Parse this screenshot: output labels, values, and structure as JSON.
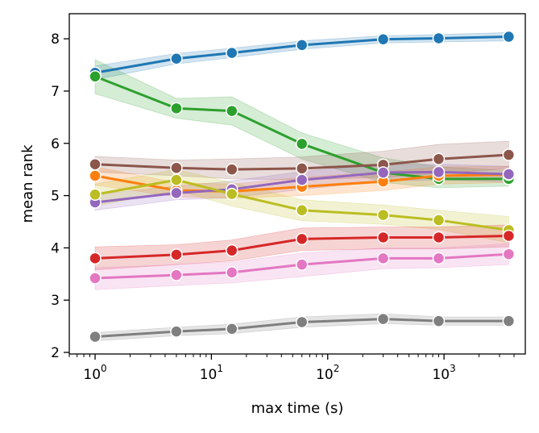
{
  "chart_data": {
    "type": "line",
    "title": "",
    "xlabel": "max time (s)",
    "ylabel": "mean rank",
    "xscale": "log",
    "xlim": [
      0.6,
      5000
    ],
    "ylim": [
      1.97,
      8.48
    ],
    "x": [
      1,
      5,
      15,
      60,
      300,
      900,
      3600
    ],
    "xticks": [
      {
        "value": 1,
        "base": "10",
        "exp": "0"
      },
      {
        "value": 10,
        "base": "10",
        "exp": "1"
      },
      {
        "value": 100,
        "base": "10",
        "exp": "2"
      },
      {
        "value": 1000,
        "base": "10",
        "exp": "3"
      }
    ],
    "yticks": [
      2,
      3,
      4,
      5,
      6,
      7,
      8
    ],
    "legend": "none",
    "series": [
      {
        "name": "blue",
        "color": "#1f77b4",
        "values": [
          7.35,
          7.62,
          7.73,
          7.88,
          7.99,
          8.01,
          8.04
        ],
        "lower": [
          7.22,
          7.52,
          7.64,
          7.8,
          7.92,
          7.94,
          7.96
        ],
        "upper": [
          7.48,
          7.72,
          7.82,
          7.96,
          8.06,
          8.08,
          8.12
        ]
      },
      {
        "name": "green",
        "color": "#2ca02c",
        "values": [
          7.28,
          6.67,
          6.62,
          5.99,
          5.44,
          5.32,
          5.32
        ],
        "lower": [
          6.95,
          6.48,
          6.35,
          5.7,
          5.25,
          5.15,
          5.18
        ],
        "upper": [
          7.6,
          6.86,
          6.89,
          6.2,
          5.72,
          5.55,
          5.48
        ]
      },
      {
        "name": "brown",
        "color": "#8c564b",
        "values": [
          5.6,
          5.53,
          5.5,
          5.52,
          5.59,
          5.7,
          5.78
        ],
        "lower": [
          5.45,
          5.38,
          5.32,
          5.3,
          5.35,
          5.42,
          5.52
        ],
        "upper": [
          5.75,
          5.68,
          5.7,
          5.74,
          5.85,
          5.98,
          6.04
        ]
      },
      {
        "name": "orange",
        "color": "#ff7f0e",
        "values": [
          5.38,
          5.1,
          5.08,
          5.17,
          5.27,
          5.38,
          5.4
        ],
        "lower": [
          5.2,
          4.98,
          4.95,
          5.0,
          5.1,
          5.22,
          5.25
        ],
        "upper": [
          5.55,
          5.25,
          5.22,
          5.35,
          5.45,
          5.55,
          5.56
        ]
      },
      {
        "name": "purple",
        "color": "#9467bd",
        "values": [
          4.87,
          5.05,
          5.12,
          5.3,
          5.44,
          5.45,
          5.41
        ],
        "lower": [
          4.72,
          4.92,
          4.96,
          5.12,
          5.28,
          5.3,
          5.26
        ],
        "upper": [
          5.02,
          5.18,
          5.28,
          5.46,
          5.6,
          5.6,
          5.56
        ]
      },
      {
        "name": "olive",
        "color": "#bcbd22",
        "values": [
          5.02,
          5.3,
          5.03,
          4.72,
          4.63,
          4.53,
          4.34
        ],
        "lower": [
          4.8,
          5.1,
          4.8,
          4.52,
          4.45,
          4.35,
          4.1
        ],
        "upper": [
          5.22,
          5.5,
          5.25,
          4.92,
          4.82,
          4.72,
          4.6
        ]
      },
      {
        "name": "red",
        "color": "#d62728",
        "values": [
          3.8,
          3.87,
          3.95,
          4.17,
          4.2,
          4.2,
          4.23
        ],
        "lower": [
          3.58,
          3.68,
          3.75,
          3.95,
          3.98,
          3.98,
          4.02
        ],
        "upper": [
          4.02,
          4.06,
          4.15,
          4.38,
          4.4,
          4.4,
          4.44
        ]
      },
      {
        "name": "pink",
        "color": "#e377c2",
        "values": [
          3.42,
          3.48,
          3.53,
          3.68,
          3.8,
          3.8,
          3.88
        ],
        "lower": [
          3.2,
          3.28,
          3.33,
          3.45,
          3.6,
          3.62,
          3.68
        ],
        "upper": [
          3.62,
          3.68,
          3.73,
          3.9,
          4.0,
          4.0,
          4.08
        ]
      },
      {
        "name": "gray",
        "color": "#7f7f7f",
        "values": [
          2.3,
          2.4,
          2.45,
          2.58,
          2.64,
          2.6,
          2.6
        ],
        "lower": [
          2.22,
          2.32,
          2.36,
          2.48,
          2.55,
          2.52,
          2.52
        ],
        "upper": [
          2.38,
          2.48,
          2.54,
          2.68,
          2.74,
          2.68,
          2.68
        ]
      }
    ]
  }
}
